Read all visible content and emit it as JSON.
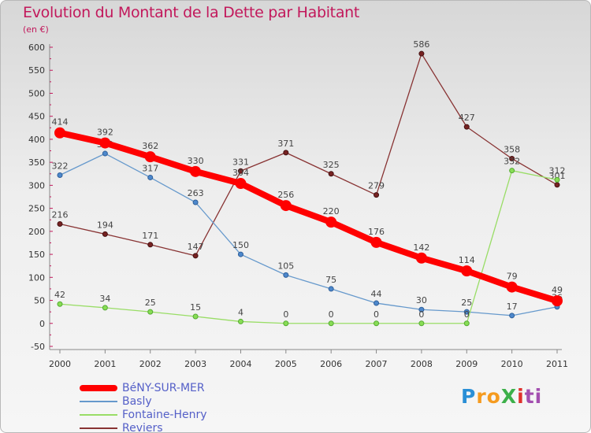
{
  "header": {
    "title": "Evolution du Montant de la Dette par Habitant",
    "unit": "(en €)"
  },
  "chart_data": {
    "type": "line",
    "title": "Evolution du Montant de la Dette par Habitant",
    "subtitle": "(en €)",
    "xlabel": "",
    "ylabel": "",
    "categories": [
      "2000",
      "2001",
      "2002",
      "2003",
      "2004",
      "2005",
      "2006",
      "2007",
      "2008",
      "2009",
      "2010",
      "2011"
    ],
    "ylim": [
      -50,
      600
    ],
    "yticks": [
      -50,
      0,
      50,
      100,
      150,
      200,
      250,
      300,
      350,
      400,
      450,
      500,
      550,
      600
    ],
    "grid": false,
    "legend_position": "bottom-left",
    "series": [
      {
        "name": "BéNY-SUR-MER",
        "color": "#ff0000",
        "values": [
          414,
          392,
          362,
          330,
          304,
          256,
          220,
          176,
          142,
          114,
          79,
          49
        ]
      },
      {
        "name": "Basly",
        "color": "#6699cc",
        "values": [
          322,
          369,
          317,
          263,
          150,
          105,
          75,
          44,
          30,
          25,
          17,
          36
        ]
      },
      {
        "name": "Fontaine-Henry",
        "color": "#99dd66",
        "values": [
          42,
          34,
          25,
          15,
          4,
          0,
          0,
          0,
          0,
          0,
          332,
          312
        ]
      },
      {
        "name": "Reviers",
        "color": "#883333",
        "values": [
          216,
          194,
          171,
          147,
          331,
          371,
          325,
          279,
          586,
          427,
          358,
          301
        ]
      }
    ]
  },
  "logo": {
    "text": "ProXiti",
    "letters": [
      "P",
      "r",
      "o",
      "X",
      "i",
      "t",
      "i"
    ],
    "colors": [
      "#2a8fd6",
      "#f59b1f",
      "#f59b1f",
      "#3db04a",
      "#e0312c",
      "#a34fb0",
      "#a34fb0"
    ]
  }
}
